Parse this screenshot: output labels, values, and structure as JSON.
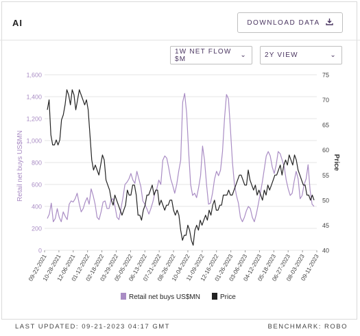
{
  "header": {
    "ticker": "AI",
    "download_label": "DOWNLOAD DATA",
    "download_icon": "download-icon"
  },
  "controls": {
    "flow_select": "1W NET FLOW $M",
    "view_select": "2Y VIEW"
  },
  "footer": {
    "last_updated": "LAST UPDATED: 09-21-2023 04:17 GMT",
    "benchmark": "BENCHMARK: ROBO"
  },
  "colors": {
    "retail": "#a98cc4",
    "price": "#222222",
    "grid": "#e6e6e6",
    "accent_text": "#4a3560"
  },
  "chart_data": {
    "type": "line",
    "xlabel": "",
    "ylabel_left": "Retail net buys US$MN",
    "ylabel_right": "Price",
    "ylim_left": [
      0,
      1600
    ],
    "ylim_right": [
      40,
      75
    ],
    "yticks_left": [
      "0",
      "200",
      "400",
      "600",
      "800",
      "1,000",
      "1,200",
      "1,400",
      "1,600"
    ],
    "yticks_right": [
      "40",
      "45",
      "50",
      "55",
      "60",
      "65",
      "70",
      "75"
    ],
    "xticks": [
      "09-22-2021",
      "10-28-2021",
      "12-06-2021",
      "01-12-2022",
      "02-18-2022",
      "03-29-2022",
      "05-05-2022",
      "06-13-2022",
      "07-21-2022",
      "08-26-2022",
      "10-04-2022",
      "11-09-2022",
      "12-16-2022",
      "01-26-2023",
      "03-06-2023",
      "04-12-2023",
      "05-18-2023",
      "06-27-2023",
      "08-03-2023",
      "09-11-2023"
    ],
    "grid": "horizontal",
    "legend": "bottom",
    "series": [
      {
        "name": "Retail net buys US$MN",
        "axis": "left",
        "values": [
          290,
          330,
          430,
          260,
          290,
          380,
          300,
          260,
          350,
          310,
          280,
          420,
          450,
          440,
          470,
          520,
          430,
          350,
          380,
          440,
          480,
          420,
          560,
          500,
          420,
          300,
          280,
          350,
          440,
          450,
          380,
          380,
          460,
          470,
          400,
          300,
          280,
          380,
          480,
          600,
          620,
          650,
          700,
          640,
          610,
          720,
          650,
          580,
          450,
          420,
          380,
          330,
          380,
          440,
          520,
          560,
          640,
          600,
          820,
          860,
          840,
          750,
          650,
          590,
          520,
          600,
          720,
          820,
          1350,
          1430,
          1250,
          900,
          600,
          500,
          520,
          480,
          570,
          680,
          950,
          820,
          600,
          420,
          430,
          520,
          650,
          720,
          680,
          730,
          900,
          1200,
          1420,
          1380,
          1100,
          800,
          600,
          500,
          430,
          300,
          260,
          300,
          360,
          400,
          380,
          300,
          260,
          330,
          420,
          520,
          620,
          740,
          860,
          900,
          860,
          760,
          700,
          780,
          900,
          880,
          820,
          760,
          640,
          560,
          500,
          520,
          630,
          720,
          650,
          470,
          500,
          600,
          650,
          780,
          550,
          420,
          400
        ]
      },
      {
        "name": "Price",
        "axis": "right",
        "values": [
          68,
          70,
          63,
          61,
          61,
          62,
          61,
          62,
          66,
          67,
          69,
          72,
          71,
          69,
          72,
          71,
          68,
          70,
          72,
          71,
          70,
          69,
          70,
          68,
          63,
          58,
          56,
          57,
          56,
          55,
          57,
          59,
          58,
          54,
          53,
          52,
          50,
          49,
          51,
          50,
          49,
          48,
          47,
          48,
          49,
          52,
          51,
          51,
          53,
          53,
          51,
          47,
          47,
          46,
          48,
          49,
          51,
          51,
          52,
          53,
          51,
          52,
          52,
          49,
          50,
          49,
          48,
          49,
          49,
          50,
          50,
          48,
          47,
          48,
          47,
          44,
          42,
          43,
          43,
          45,
          44,
          42,
          41,
          44,
          45,
          44,
          46,
          45,
          46,
          47,
          46,
          48,
          47,
          49,
          50,
          48,
          48,
          49,
          49,
          51,
          51,
          51,
          52,
          51,
          51,
          52,
          53,
          54,
          55,
          55,
          54,
          53,
          53,
          56,
          54,
          53,
          52,
          53,
          51,
          52,
          51,
          50,
          52,
          51,
          53,
          52,
          53,
          54,
          55,
          55,
          56,
          57,
          55,
          57,
          58,
          57,
          59,
          58,
          57,
          59,
          58,
          56,
          55,
          54,
          53,
          53,
          51,
          51,
          50,
          51,
          50
        ]
      }
    ]
  }
}
